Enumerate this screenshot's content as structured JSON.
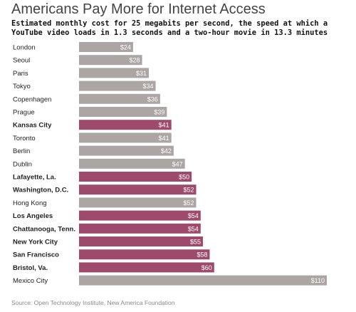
{
  "header": {
    "title": "Americans Pay More for Internet Access",
    "subtitle": "Estimated monthly cost for 25 megabits per second, the speed at which a YouTube video loads in 1.3 seconds and a two-hour movie in 13.3 minutes"
  },
  "footer": {
    "source": "Source: Open Technology Institute, New America Foundation"
  },
  "colors": {
    "us_city": "#9e4a6c",
    "other_city": "#aba5a3",
    "value_label": "#ffffff"
  },
  "chart_data": {
    "type": "bar",
    "orientation": "horizontal",
    "value_prefix": "$",
    "categories": [
      "London",
      "Seoul",
      "Paris",
      "Tokyo",
      "Copenhagen",
      "Prague",
      "Kansas City",
      "Toronto",
      "Berlin",
      "Dublin",
      "Lafayette, La.",
      "Washington, D.C.",
      "Hong Kong",
      "Los Angeles",
      "Chattanooga, Tenn.",
      "New York City",
      "San Francisco",
      "Bristol, Va.",
      "Mexico City"
    ],
    "values": [
      24,
      28,
      31,
      34,
      36,
      39,
      41,
      41,
      42,
      47,
      50,
      52,
      52,
      54,
      54,
      55,
      58,
      60,
      110
    ],
    "highlighted": [
      false,
      false,
      false,
      false,
      false,
      false,
      true,
      false,
      false,
      false,
      true,
      true,
      false,
      true,
      true,
      true,
      true,
      true,
      false
    ],
    "xlim": [
      0,
      110
    ],
    "grid": false,
    "legend": "none"
  }
}
